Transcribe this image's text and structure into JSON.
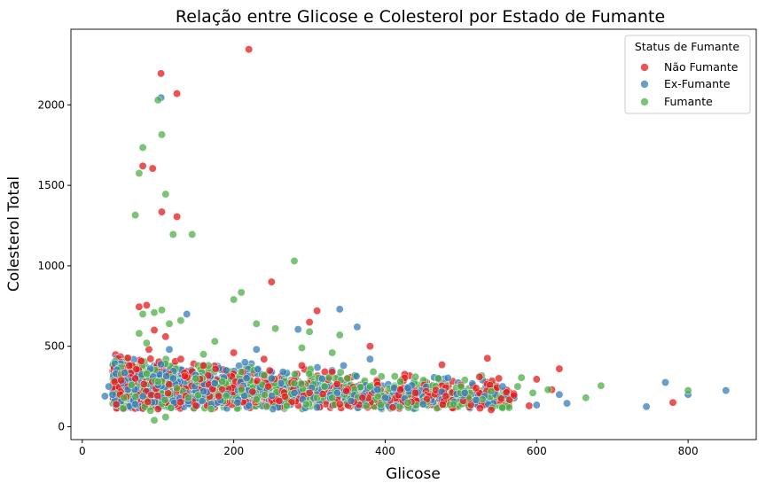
{
  "chart_data": {
    "type": "scatter",
    "title": "Relação entre Glicose e Colesterol por Estado de Fumante",
    "xlabel": "Glicose",
    "ylabel": "Colesterol Total",
    "xlim": [
      -15,
      890
    ],
    "ylim": [
      -80,
      2470
    ],
    "xticks": [
      0,
      200,
      400,
      600,
      800
    ],
    "yticks": [
      0,
      500,
      1000,
      1500,
      2000
    ],
    "grid": false,
    "legend": {
      "title": "Status de Fumante",
      "placement": "top-right"
    },
    "series": [
      {
        "name": "Não Fumante",
        "color": "#e41a1c",
        "points": [
          [
            220,
            2345
          ],
          [
            104,
            2195
          ],
          [
            125,
            2070
          ],
          [
            80,
            1620
          ],
          [
            93,
            1605
          ],
          [
            105,
            1335
          ],
          [
            125,
            1305
          ],
          [
            75,
            745
          ],
          [
            85,
            755
          ],
          [
            300,
            650
          ],
          [
            250,
            900
          ],
          [
            310,
            720
          ],
          [
            380,
            500
          ],
          [
            535,
            425
          ],
          [
            475,
            385
          ],
          [
            630,
            360
          ],
          [
            550,
            300
          ],
          [
            600,
            295
          ],
          [
            780,
            150
          ],
          [
            560,
            215
          ],
          [
            570,
            195
          ],
          [
            520,
            240
          ],
          [
            480,
            190
          ],
          [
            455,
            170
          ],
          [
            420,
            230
          ],
          [
            390,
            260
          ],
          [
            350,
            300
          ],
          [
            330,
            340
          ],
          [
            290,
            380
          ],
          [
            240,
            420
          ],
          [
            200,
            460
          ],
          [
            160,
            380
          ],
          [
            130,
            420
          ],
          [
            110,
            560
          ],
          [
            95,
            600
          ],
          [
            88,
            480
          ],
          [
            70,
            300
          ],
          [
            60,
            250
          ],
          [
            50,
            200
          ],
          [
            45,
            140
          ],
          [
            62,
            380
          ],
          [
            100,
            110
          ],
          [
            150,
            130
          ],
          [
            180,
            190
          ],
          [
            210,
            240
          ],
          [
            260,
            160
          ],
          [
            300,
            210
          ],
          [
            340,
            140
          ],
          [
            370,
            180
          ],
          [
            410,
            120
          ],
          [
            440,
            210
          ],
          [
            500,
            260
          ],
          [
            540,
            105
          ],
          [
            590,
            130
          ],
          [
            620,
            230
          ]
        ]
      },
      {
        "name": "Ex-Fumante",
        "color": "#377eb8",
        "points": [
          [
            104,
            2045
          ],
          [
            138,
            700
          ],
          [
            340,
            730
          ],
          [
            363,
            620
          ],
          [
            285,
            605
          ],
          [
            230,
            480
          ],
          [
            770,
            275
          ],
          [
            800,
            200
          ],
          [
            850,
            225
          ],
          [
            745,
            125
          ],
          [
            630,
            200
          ],
          [
            640,
            145
          ],
          [
            600,
            135
          ],
          [
            520,
            165
          ],
          [
            470,
            300
          ],
          [
            430,
            240
          ],
          [
            400,
            180
          ],
          [
            380,
            420
          ],
          [
            355,
            160
          ],
          [
            320,
            250
          ],
          [
            280,
            210
          ],
          [
            250,
            300
          ],
          [
            220,
            130
          ],
          [
            190,
            350
          ],
          [
            160,
            220
          ],
          [
            140,
            160
          ],
          [
            120,
            300
          ],
          [
            100,
            260
          ],
          [
            80,
            190
          ],
          [
            60,
            230
          ],
          [
            40,
            200
          ],
          [
            30,
            190
          ],
          [
            35,
            250
          ],
          [
            70,
            140
          ],
          [
            90,
            360
          ],
          [
            115,
            480
          ],
          [
            175,
            270
          ],
          [
            205,
            150
          ],
          [
            265,
            340
          ],
          [
            310,
            120
          ],
          [
            345,
            380
          ],
          [
            390,
            230
          ],
          [
            450,
            140
          ],
          [
            505,
            210
          ],
          [
            555,
            250
          ]
        ]
      },
      {
        "name": "Fumante",
        "color": "#4daf4a",
        "points": [
          [
            100,
            2030
          ],
          [
            105,
            1815
          ],
          [
            80,
            1735
          ],
          [
            75,
            1575
          ],
          [
            110,
            1445
          ],
          [
            70,
            1315
          ],
          [
            145,
            1195
          ],
          [
            120,
            1195
          ],
          [
            280,
            1030
          ],
          [
            210,
            835
          ],
          [
            200,
            790
          ],
          [
            105,
            725
          ],
          [
            95,
            710
          ],
          [
            130,
            660
          ],
          [
            115,
            640
          ],
          [
            80,
            700
          ],
          [
            75,
            580
          ],
          [
            85,
            520
          ],
          [
            230,
            640
          ],
          [
            255,
            610
          ],
          [
            300,
            590
          ],
          [
            340,
            570
          ],
          [
            290,
            490
          ],
          [
            175,
            530
          ],
          [
            160,
            450
          ],
          [
            330,
            460
          ],
          [
            685,
            255
          ],
          [
            665,
            180
          ],
          [
            800,
            225
          ],
          [
            615,
            230
          ],
          [
            580,
            305
          ],
          [
            595,
            210
          ],
          [
            575,
            250
          ],
          [
            540,
            220
          ],
          [
            500,
            250
          ],
          [
            470,
            300
          ],
          [
            440,
            310
          ],
          [
            420,
            280
          ],
          [
            380,
            250
          ],
          [
            350,
            300
          ],
          [
            320,
            250
          ],
          [
            280,
            270
          ],
          [
            240,
            320
          ],
          [
            210,
            230
          ],
          [
            185,
            280
          ],
          [
            150,
            300
          ],
          [
            125,
            240
          ],
          [
            100,
            280
          ],
          [
            85,
            330
          ],
          [
            65,
            260
          ],
          [
            55,
            180
          ],
          [
            90,
            100
          ],
          [
            110,
            60
          ],
          [
            95,
            40
          ],
          [
            140,
            180
          ],
          [
            170,
            110
          ],
          [
            230,
            170
          ],
          [
            270,
            130
          ],
          [
            330,
            180
          ],
          [
            375,
            130
          ],
          [
            430,
            150
          ],
          [
            490,
            140
          ]
        ]
      }
    ],
    "dense_cluster": {
      "description_color_order": [
        "#377eb8",
        "#4daf4a",
        "#e41a1c"
      ],
      "x_range": [
        35,
        600
      ],
      "y_range": [
        60,
        450
      ]
    }
  }
}
